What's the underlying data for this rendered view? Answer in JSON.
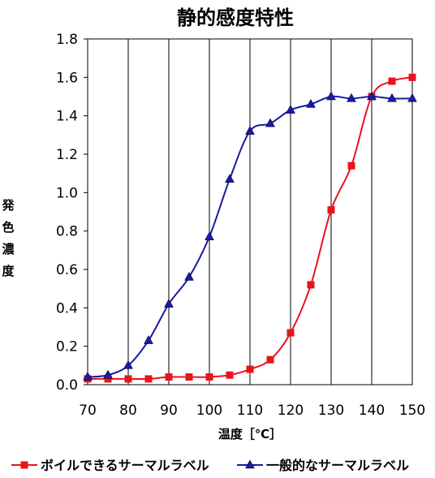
{
  "chart_data": {
    "type": "line",
    "title": "静的感度特性",
    "xlabel": "温度［℃］",
    "ylabel": "発色濃度",
    "xlim": [
      70,
      150
    ],
    "ylim": [
      0.0,
      1.8
    ],
    "x_ticks": [
      "70",
      "80",
      "90",
      "100",
      "110",
      "120",
      "130",
      "140",
      "150"
    ],
    "y_ticks": [
      "0.0",
      "0.2",
      "0.4",
      "0.6",
      "0.8",
      "1.0",
      "1.2",
      "1.4",
      "1.6",
      "1.8"
    ],
    "grid": "vertical",
    "legend_position": "bottom",
    "series": [
      {
        "name": "ボイルできるサーマルラベル",
        "color": "#e8141c",
        "marker": "square",
        "x": [
          70,
          75,
          80,
          85,
          90,
          95,
          100,
          105,
          110,
          115,
          120,
          125,
          130,
          135,
          140,
          145,
          150
        ],
        "y": [
          0.03,
          0.03,
          0.03,
          0.03,
          0.04,
          0.04,
          0.04,
          0.05,
          0.08,
          0.13,
          0.27,
          0.52,
          0.91,
          1.14,
          1.5,
          1.58,
          1.6
        ]
      },
      {
        "name": "一般的なサーマルラベル",
        "color": "#1a1aa6",
        "marker": "triangle",
        "x": [
          70,
          75,
          80,
          85,
          90,
          95,
          100,
          105,
          110,
          115,
          120,
          125,
          130,
          135,
          140,
          145,
          150
        ],
        "y": [
          0.04,
          0.05,
          0.1,
          0.23,
          0.42,
          0.56,
          0.77,
          1.07,
          1.32,
          1.36,
          1.43,
          1.46,
          1.5,
          1.49,
          1.5,
          1.49,
          1.49
        ]
      }
    ]
  }
}
